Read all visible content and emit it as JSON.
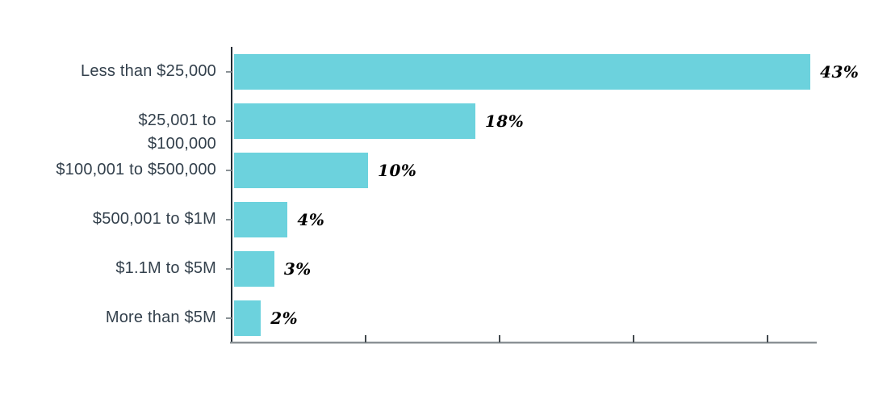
{
  "chart_data": {
    "type": "bar",
    "orientation": "horizontal",
    "title": "",
    "xlabel": "",
    "ylabel": "",
    "categories": [
      "Less than $25,000",
      "$25,001 to\n$100,000",
      "$100,001 to $500,000",
      "$500,001 to $1M",
      "$1.1M to $5M",
      "More than $5M"
    ],
    "values": [
      43,
      18,
      10,
      4,
      3,
      2
    ],
    "value_labels": [
      "43%",
      "18%",
      "10%",
      "4%",
      "3%",
      "2%"
    ],
    "xlim": [
      0,
      43.6
    ],
    "x_ticks": [
      10,
      20,
      30,
      40
    ],
    "x_tick_labels": [
      "",
      "",
      "",
      ""
    ],
    "grid": false,
    "legend": false,
    "colors": {
      "bar": "#6cd2dd",
      "category_label": "#33404c",
      "value_label": "#000000",
      "y_axis": "#212b33",
      "x_axis": "#8b9296",
      "x_tick": "#41484d",
      "y_tick": "#8b9296",
      "background": "#ffffff"
    }
  }
}
